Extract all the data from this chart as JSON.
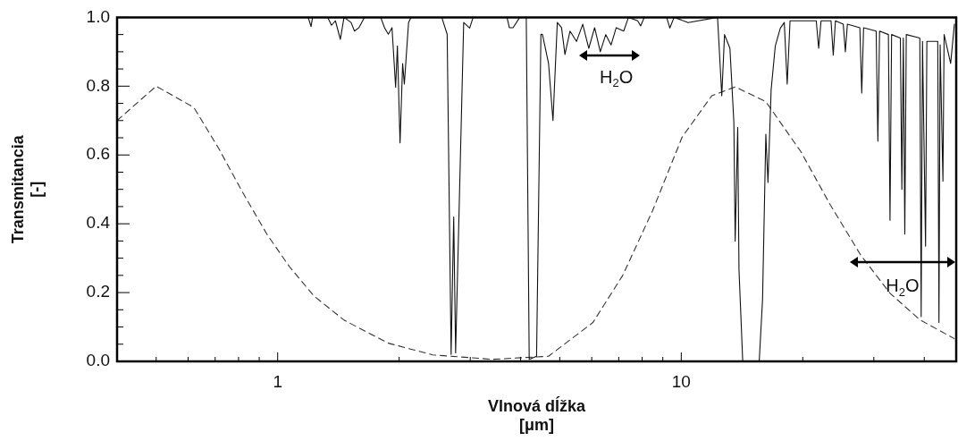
{
  "chart_data": {
    "type": "line",
    "xlabel": "Vlnová dĺžka [μm]",
    "ylabel": "Transmitancia [-]",
    "log": "x",
    "grid": false,
    "legend": false,
    "marker": "none",
    "xlim": [
      0.4,
      48
    ],
    "ylim": [
      0,
      1
    ],
    "xticks": [
      {
        "value": 0.5,
        "label": null
      },
      {
        "value": 0.6,
        "label": null
      },
      {
        "value": 0.7,
        "label": null
      },
      {
        "value": 0.8,
        "label": null
      },
      {
        "value": 0.9,
        "label": null
      },
      1,
      {
        "value": 2,
        "label": null
      },
      {
        "value": 3,
        "label": null
      },
      {
        "value": 4,
        "label": null
      },
      {
        "value": 5,
        "label": null
      },
      {
        "value": 6,
        "label": null
      },
      {
        "value": 7,
        "label": null
      },
      {
        "value": 8,
        "label": null
      },
      {
        "value": 9,
        "label": null
      },
      10,
      {
        "value": 20,
        "label": null
      },
      {
        "value": 30,
        "label": null
      },
      {
        "value": 40,
        "label": null
      }
    ],
    "yticks": [
      {
        "value": 0,
        "label": "0.0"
      },
      {
        "value": 0.05,
        "label": null
      },
      {
        "value": 0.1,
        "label": null
      },
      {
        "value": 0.15,
        "label": null
      },
      {
        "value": 0.2,
        "label": "0.2"
      },
      {
        "value": 0.25,
        "label": null
      },
      {
        "value": 0.3,
        "label": null
      },
      {
        "value": 0.35,
        "label": null
      },
      {
        "value": 0.4,
        "label": "0.4"
      },
      {
        "value": 0.45,
        "label": null
      },
      {
        "value": 0.5,
        "label": null
      },
      {
        "value": 0.55,
        "label": null
      },
      {
        "value": 0.6,
        "label": "0.6"
      },
      {
        "value": 0.65,
        "label": null
      },
      {
        "value": 0.7,
        "label": null
      },
      {
        "value": 0.75,
        "label": null
      },
      {
        "value": 0.8,
        "label": "0.8"
      },
      {
        "value": 0.85,
        "label": null
      },
      {
        "value": 0.9,
        "label": null
      },
      {
        "value": 0.95,
        "label": null
      },
      {
        "value": 1,
        "label": "1.0"
      }
    ],
    "series": [
      {
        "type": "line",
        "color": "#111111",
        "line_style": "solid",
        "x": [
          0.4,
          1.19,
          1.21,
          1.22,
          1.33,
          1.36,
          1.39,
          1.43,
          1.46,
          1.52,
          1.55,
          1.59,
          1.64,
          1.8,
          1.84,
          1.88,
          1.92,
          1.96,
          1.98,
          2.01,
          2.04,
          2.06,
          2.11,
          2.14,
          2.55,
          2.63,
          2.69,
          2.73,
          2.76,
          2.89,
          2.99,
          3.05,
          3.7,
          3.75,
          3.83,
          3.98,
          4.13,
          4.2,
          4.38,
          4.49,
          4.53,
          4.69,
          4.81,
          4.93,
          5.05,
          5.15,
          5.3,
          5.5,
          5.7,
          5.9,
          6.1,
          6.3,
          6.5,
          6.7,
          6.9,
          7.2,
          7.4,
          7.8,
          7.93,
          8.1,
          9.2,
          9.37,
          9.6,
          10.4,
          12.3,
          12.6,
          12.8,
          13.2,
          13.5,
          13.6,
          13.8,
          13.9,
          14.2,
          15.6,
          15.9,
          16.2,
          16.4,
          16.7,
          17.1,
          17.6,
          18.0,
          18.3,
          18.6,
          21.6,
          21.9,
          22.2,
          23.5,
          23.8,
          24.1,
          25.2,
          25.5,
          25.8,
          27.7,
          28.0,
          28.3,
          30.4,
          30.7,
          31.0,
          32.6,
          32.9,
          33.2,
          34.9,
          35.2,
          35.5,
          35.8,
          36.1,
          39.0,
          39.3,
          39.6,
          40.3,
          40.6,
          43.2,
          43.5,
          43.8,
          44.5,
          44.8,
          46.5,
          47.5
        ],
        "values": [
          1.0,
          1.0,
          0.973,
          1.0,
          1.0,
          0.977,
          0.99,
          0.936,
          1.0,
          0.985,
          0.96,
          0.97,
          1.0,
          1.0,
          0.97,
          0.951,
          0.97,
          0.797,
          0.917,
          0.635,
          0.866,
          0.806,
          0.985,
          1.0,
          1.0,
          0.951,
          0.02,
          0.42,
          0.025,
          0.985,
          0.969,
          1.0,
          1.0,
          0.97,
          0.97,
          1.0,
          1.0,
          0.006,
          0.015,
          0.951,
          0.95,
          0.866,
          0.7,
          0.985,
          0.97,
          0.892,
          0.96,
          0.93,
          0.98,
          0.91,
          0.97,
          0.9,
          0.95,
          0.92,
          0.97,
          0.96,
          1.0,
          0.99,
          0.975,
          1.0,
          1.0,
          0.969,
          1.0,
          0.985,
          1.0,
          0.772,
          0.95,
          0.91,
          0.695,
          0.35,
          0.68,
          0.267,
          0.0,
          0.0,
          0.18,
          0.66,
          0.52,
          0.79,
          0.917,
          0.969,
          0.985,
          0.806,
          0.99,
          0.99,
          0.91,
          0.99,
          0.99,
          0.89,
          0.99,
          0.98,
          0.9,
          0.98,
          0.97,
          0.78,
          0.97,
          0.96,
          0.64,
          0.96,
          0.95,
          0.41,
          0.95,
          0.94,
          0.5,
          0.94,
          0.37,
          0.95,
          0.94,
          0.13,
          0.93,
          0.335,
          0.93,
          0.93,
          0.113,
          0.92,
          0.524,
          0.95,
          0.866,
          0.98
        ]
      },
      {
        "type": "line",
        "color": "#333333",
        "line_style": "dashed",
        "x": [
          0.4,
          0.5,
          0.62,
          0.715,
          0.82,
          0.94,
          1.07,
          1.23,
          1.46,
          1.88,
          2.42,
          3.4,
          4.69,
          6.04,
          7.16,
          8.49,
          10.05,
          11.9,
          13.6,
          16.2,
          19.8,
          23.4,
          27.8,
          32.9,
          39.0,
          47.5
        ],
        "values": [
          0.7,
          0.8,
          0.738,
          0.618,
          0.49,
          0.37,
          0.275,
          0.19,
          0.12,
          0.053,
          0.019,
          0.006,
          0.015,
          0.113,
          0.25,
          0.438,
          0.652,
          0.772,
          0.798,
          0.755,
          0.609,
          0.455,
          0.31,
          0.198,
          0.121,
          0.066
        ]
      }
    ],
    "annotations": [
      "H$_{2}$O",
      "H$_{2}$O"
    ]
  }
}
